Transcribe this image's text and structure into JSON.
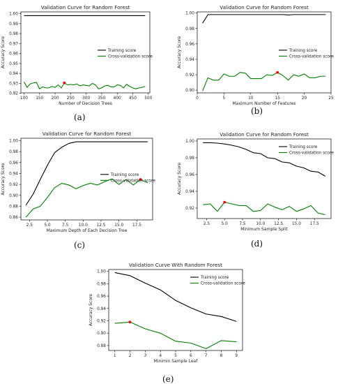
{
  "panel_labels": [
    "(a)",
    "(b)",
    "(c)",
    "(d)",
    "(e)"
  ],
  "chart_data": [
    {
      "type": "line",
      "title": "Validation Curve for Random Forest",
      "xlabel": "Number of Decision Trees",
      "ylabel": "Accuracy Score",
      "xlim": [
        90,
        505
      ],
      "ylim": [
        0.9205,
        1.0018
      ],
      "xticks": [
        100,
        150,
        200,
        250,
        300,
        350,
        400,
        450,
        500
      ],
      "yticks": [
        0.92,
        0.93,
        0.94,
        0.95,
        0.96,
        0.97,
        0.98,
        0.99,
        1.0
      ],
      "ytick_labels": [
        "0.92",
        "0.93",
        "0.94",
        "0.95",
        "0.96",
        "0.97",
        "0.98",
        "0.99",
        "1.00"
      ],
      "legend": "right",
      "series": [
        {
          "name": "Training score",
          "color": "#000000",
          "x": [
            100,
            490
          ],
          "y": [
            0.998,
            0.998
          ]
        },
        {
          "name": "Cross-validation score",
          "color": "#008000",
          "x": [
            100,
            110,
            120,
            130,
            140,
            150,
            160,
            170,
            180,
            190,
            200,
            210,
            220,
            230,
            240,
            250,
            260,
            270,
            280,
            290,
            300,
            310,
            320,
            330,
            340,
            350,
            360,
            370,
            380,
            390,
            400,
            410,
            420,
            430,
            440,
            450,
            460,
            470,
            480,
            490
          ],
          "y": [
            0.9315,
            0.926,
            0.9295,
            0.9305,
            0.931,
            0.9245,
            0.9265,
            0.9255,
            0.9255,
            0.927,
            0.926,
            0.9285,
            0.9255,
            0.9305,
            0.9285,
            0.929,
            0.9285,
            0.9295,
            0.9275,
            0.9285,
            0.928,
            0.9275,
            0.93,
            0.9285,
            0.9245,
            0.9255,
            0.9275,
            0.928,
            0.9265,
            0.9265,
            0.9285,
            0.928,
            0.9255,
            0.929,
            0.927,
            0.9255,
            0.9245,
            0.9255,
            0.926,
            0.927
          ]
        }
      ],
      "best_point": {
        "x": 230,
        "y": 0.9305,
        "color": "#ff0000"
      }
    },
    {
      "type": "line",
      "title": "Validation Curve for Random Forest",
      "xlabel": "Maximum Number of Features",
      "ylabel": "Accuracy Score",
      "xlim": [
        0,
        25
      ],
      "ylim": [
        0.8965,
        1.0015
      ],
      "xticks": [
        0,
        5,
        10,
        15,
        20,
        25
      ],
      "yticks": [
        0.9,
        0.92,
        0.94,
        0.96,
        0.98,
        1.0
      ],
      "ytick_labels": [
        "0.90",
        "0.92",
        "0.94",
        "0.96",
        "0.98",
        "1.00"
      ],
      "legend": "right",
      "series": [
        {
          "name": "Training score",
          "color": "#000000",
          "x": [
            1,
            2,
            3,
            4,
            5,
            6,
            7,
            8,
            9,
            10,
            11,
            12,
            13,
            14,
            15,
            16,
            17,
            18,
            19,
            20,
            21,
            22,
            23,
            24
          ],
          "y": [
            0.987,
            0.998,
            0.998,
            0.998,
            0.998,
            0.998,
            0.998,
            0.998,
            0.998,
            0.998,
            0.998,
            0.998,
            0.998,
            0.998,
            0.998,
            0.998,
            0.9975,
            0.998,
            0.998,
            0.998,
            0.998,
            0.998,
            0.998,
            0.998
          ]
        },
        {
          "name": "Cross-validation score",
          "color": "#008000",
          "x": [
            1,
            2,
            3,
            4,
            5,
            6,
            7,
            8,
            9,
            10,
            11,
            12,
            13,
            14,
            15,
            16,
            17,
            18,
            19,
            20,
            21,
            22,
            23,
            24
          ],
          "y": [
            0.899,
            0.916,
            0.913,
            0.913,
            0.921,
            0.918,
            0.918,
            0.923,
            0.922,
            0.915,
            0.915,
            0.915,
            0.92,
            0.919,
            0.923,
            0.919,
            0.913,
            0.92,
            0.918,
            0.921,
            0.916,
            0.916,
            0.918,
            0.918
          ]
        }
      ],
      "best_point": {
        "x": 15,
        "y": 0.923,
        "color": "#ff0000"
      }
    },
    {
      "type": "line",
      "title": "Validation Curve for Random Forest",
      "xlabel": "Maximum Depth of Each Decision Tree",
      "ylabel": "Accuracy Score",
      "xlim": [
        1.3,
        19.7
      ],
      "ylim": [
        0.855,
        1.0045
      ],
      "xticks": [
        2.5,
        5.0,
        7.5,
        10.0,
        12.5,
        15.0,
        17.5
      ],
      "xtick_labels": [
        "2.5",
        "5.0",
        "7.5",
        "10.0",
        "12.5",
        "15.0",
        "17.5"
      ],
      "yticks": [
        0.86,
        0.88,
        0.9,
        0.92,
        0.94,
        0.96,
        0.98,
        1.0
      ],
      "ytick_labels": [
        "0.86",
        "0.88",
        "0.90",
        "0.92",
        "0.94",
        "0.96",
        "0.98",
        "1.00"
      ],
      "legend": "lower right",
      "series": [
        {
          "name": "Training score",
          "color": "#000000",
          "x": [
            2,
            3,
            4,
            5,
            6,
            7,
            8,
            9,
            10,
            11,
            12,
            13,
            14,
            15,
            16,
            17,
            18,
            19
          ],
          "y": [
            0.882,
            0.902,
            0.929,
            0.955,
            0.978,
            0.988,
            0.995,
            0.998,
            0.998,
            0.998,
            0.998,
            0.998,
            0.998,
            0.998,
            0.998,
            0.998,
            0.998,
            0.998
          ]
        },
        {
          "name": "Cross-validation score",
          "color": "#008000",
          "x": [
            2,
            3,
            4,
            5,
            6,
            7,
            8,
            9,
            10,
            11,
            12,
            13,
            14,
            15,
            16,
            17,
            18,
            19
          ],
          "y": [
            0.86,
            0.875,
            0.88,
            0.896,
            0.914,
            0.922,
            0.919,
            0.912,
            0.918,
            0.922,
            0.919,
            0.925,
            0.93,
            0.92,
            0.929,
            0.919,
            0.929,
            0.923
          ]
        }
      ],
      "best_point": {
        "x": 18,
        "y": 0.929,
        "color": "#ff0000"
      }
    },
    {
      "type": "line",
      "title": "Validation Curve for Random Forest",
      "xlabel": "Minimum Sample Split",
      "ylabel": "Accuracy Score",
      "xlim": [
        1.2,
        19.8
      ],
      "ylim": [
        0.9075,
        1.0025
      ],
      "xticks": [
        2.5,
        5.0,
        7.5,
        10.0,
        12.5,
        15.0,
        17.5
      ],
      "xtick_labels": [
        "2.5",
        "5.0",
        "7.5",
        "10.0",
        "12.5",
        "15.0",
        "17.5"
      ],
      "yticks": [
        0.92,
        0.94,
        0.96,
        0.98,
        1.0
      ],
      "ytick_labels": [
        "0.92",
        "0.94",
        "0.96",
        "0.98",
        "1.00"
      ],
      "legend": "upper right",
      "series": [
        {
          "name": "Training score",
          "color": "#000000",
          "x": [
            2,
            3,
            4,
            5,
            6,
            7,
            8,
            9,
            10,
            11,
            12,
            13,
            14,
            15,
            16,
            17,
            18,
            19
          ],
          "y": [
            0.998,
            0.998,
            0.9975,
            0.9965,
            0.995,
            0.993,
            0.99,
            0.986,
            0.985,
            0.98,
            0.979,
            0.975,
            0.974,
            0.97,
            0.968,
            0.964,
            0.963,
            0.958
          ]
        },
        {
          "name": "Cross-validation score",
          "color": "#008000",
          "x": [
            2,
            3,
            4,
            5,
            6,
            7,
            8,
            9,
            10,
            11,
            12,
            13,
            14,
            15,
            16,
            17,
            18,
            19
          ],
          "y": [
            0.924,
            0.925,
            0.916,
            0.927,
            0.925,
            0.923,
            0.923,
            0.916,
            0.917,
            0.925,
            0.921,
            0.918,
            0.922,
            0.916,
            0.919,
            0.923,
            0.914,
            0.912
          ]
        }
      ],
      "best_point": {
        "x": 5,
        "y": 0.927,
        "color": "#ff0000"
      }
    },
    {
      "type": "line",
      "title": "Validation Curve With Random Forest",
      "xlabel": "Minimin Sample Leaf",
      "ylabel": "Accuracy Score",
      "xlim": [
        0.6,
        9.4
      ],
      "ylim": [
        0.872,
        1.003
      ],
      "xticks": [
        1,
        2,
        3,
        4,
        5,
        6,
        7,
        8,
        9
      ],
      "yticks": [
        0.88,
        0.9,
        0.92,
        0.94,
        0.96,
        0.98,
        1.0
      ],
      "ytick_labels": [
        "0.88",
        "0.90",
        "0.92",
        "0.94",
        "0.96",
        "0.98",
        "1.00"
      ],
      "legend": "upper right",
      "series": [
        {
          "name": "Training score",
          "color": "#000000",
          "x": [
            1,
            2,
            3,
            4,
            5,
            6,
            7,
            8,
            9
          ],
          "y": [
            0.998,
            0.993,
            0.981,
            0.97,
            0.953,
            0.941,
            0.931,
            0.927,
            0.919
          ]
        },
        {
          "name": "Cross-validation score",
          "color": "#008000",
          "x": [
            1,
            2,
            3,
            4,
            5,
            6,
            7,
            8,
            9
          ],
          "y": [
            0.916,
            0.918,
            0.907,
            0.9,
            0.887,
            0.884,
            0.875,
            0.888,
            0.886
          ]
        }
      ],
      "best_point": {
        "x": 2,
        "y": 0.918,
        "color": "#ff0000"
      }
    }
  ]
}
